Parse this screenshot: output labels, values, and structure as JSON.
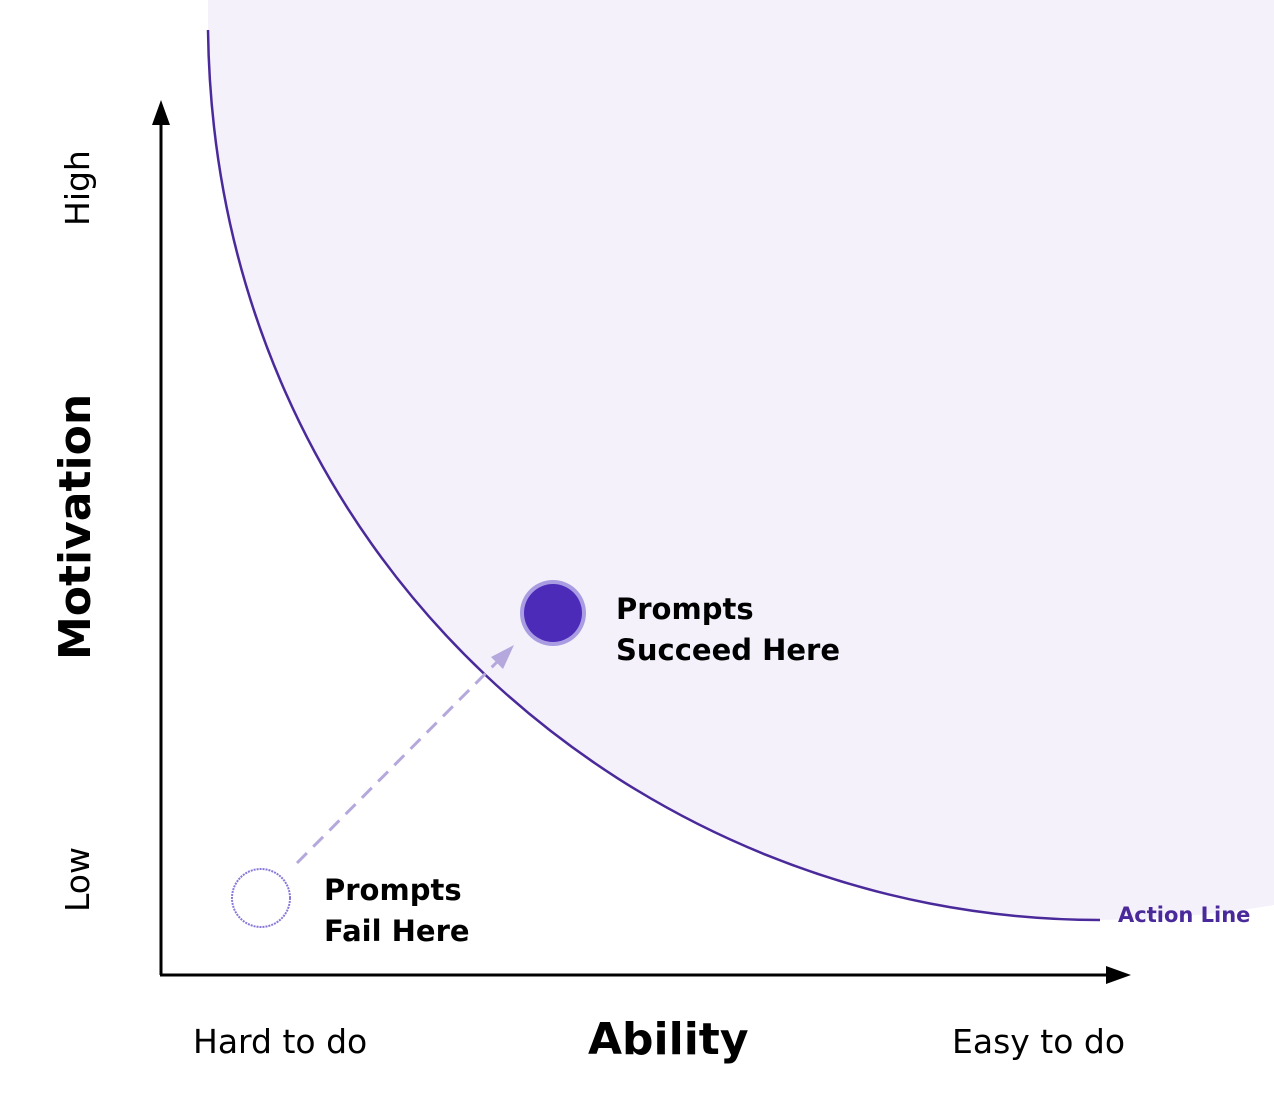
{
  "axes": {
    "x_title": "Ability",
    "y_title": "Motivation",
    "x_low": "Hard to do",
    "x_high": "Easy to do",
    "y_low": "Low",
    "y_high": "High"
  },
  "curve": {
    "label": "Action Line",
    "color": "#4a2a9a",
    "region_fill": "#f4f1fb"
  },
  "points": {
    "fail": {
      "line1": "Prompts",
      "line2": "Fail Here",
      "color": "#8a78d8"
    },
    "succeed": {
      "line1": "Prompts",
      "line2": "Succeed Here",
      "color": "#4b2bb8"
    }
  },
  "arrow_color": "#b4a8dc"
}
